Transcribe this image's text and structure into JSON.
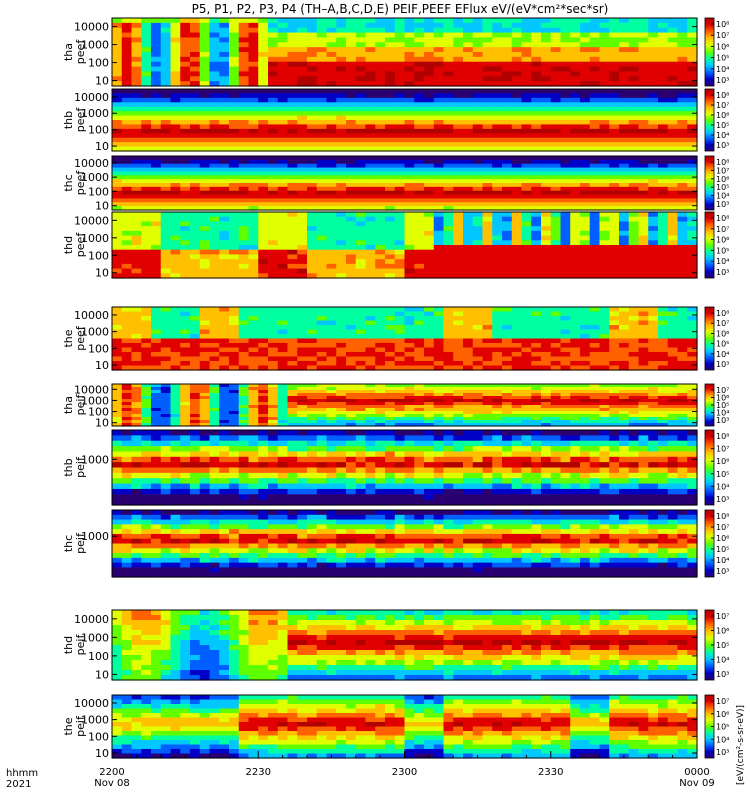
{
  "title": "P5, P1, P2, P3, P4 (TH–A,B,C,D,E) PEIF,PEEF EFlux eV/(eV*cm²*sec*sr)",
  "colorbar_unit_label": "[eV/(cm²-s-sr-eV)]",
  "time_axis": {
    "row1_label": "hhmm",
    "row2_label": "2021",
    "ticks": [
      {
        "t": 0,
        "hhmm": "2200",
        "date": "Nov 08"
      },
      {
        "t": 30,
        "hhmm": "2230",
        "date": ""
      },
      {
        "t": 60,
        "hhmm": "2300",
        "date": ""
      },
      {
        "t": 90,
        "hhmm": "2330",
        "date": ""
      },
      {
        "t": 120,
        "hhmm": "0000",
        "date": "Nov 09"
      }
    ],
    "minor_per_major": 6,
    "range_minutes": [
      0,
      120
    ]
  },
  "chart_data": {
    "type": "heatmap",
    "colormap": "rainbow (blue-cyan-green-yellow-red)",
    "time_range": [
      "2021-11-08 22:00",
      "2021-11-09 00:00"
    ],
    "panels": [
      {
        "id": "tha_peef",
        "probe": "tha",
        "product": "peef",
        "ylabel": [
          "tha",
          "peef"
        ],
        "yticks": [
          "10000",
          "1000",
          "100",
          "10"
        ],
        "yscale": "log",
        "ylim": [
          5,
          30000
        ],
        "colorbar_ticks": [
          "10⁸",
          "10⁷",
          "10⁶",
          "10⁵",
          "10⁴",
          "10³"
        ],
        "colorbar_range": [
          3,
          9
        ]
      },
      {
        "id": "thb_peef",
        "probe": "thb",
        "product": "peef",
        "ylabel": [
          "thb",
          "peef"
        ],
        "yticks": [
          "10000",
          "1000",
          "100",
          "10"
        ],
        "yscale": "log",
        "ylim": [
          5,
          30000
        ],
        "colorbar_ticks": [
          "10⁸",
          "10⁷",
          "10⁶",
          "10⁵",
          "10⁴",
          "10³"
        ],
        "colorbar_range": [
          3,
          9
        ]
      },
      {
        "id": "thc_peef",
        "probe": "thc",
        "product": "peef",
        "ylabel": [
          "thc",
          "peef"
        ],
        "yticks": [
          "10000",
          "1000",
          "100",
          "10"
        ],
        "yscale": "log",
        "ylim": [
          5,
          30000
        ],
        "colorbar_ticks": [
          "10⁸",
          "10⁷",
          "10⁶",
          "10⁵",
          "10⁴",
          "10³"
        ],
        "colorbar_range": [
          3,
          9
        ]
      },
      {
        "id": "thd_peef",
        "probe": "thd",
        "product": "peef",
        "ylabel": [
          "thd",
          "peef"
        ],
        "yticks": [
          "10000",
          "1000",
          "100",
          "10"
        ],
        "yscale": "log",
        "ylim": [
          5,
          30000
        ],
        "colorbar_ticks": [
          "10⁸",
          "10⁷",
          "10⁶",
          "10⁵",
          "10⁴",
          "10³"
        ],
        "colorbar_range": [
          3,
          9
        ]
      },
      {
        "id": "the_peef",
        "probe": "the",
        "product": "peef",
        "ylabel": [
          "the",
          "peef"
        ],
        "yticks": [
          "10000",
          "1000",
          "100",
          "10"
        ],
        "yscale": "log",
        "ylim": [
          5,
          30000
        ],
        "colorbar_ticks": [
          "10⁸",
          "10⁷",
          "10⁶",
          "10⁵",
          "10⁴",
          "10³"
        ],
        "colorbar_range": [
          3,
          9
        ]
      },
      {
        "id": "tha_peif",
        "probe": "tha",
        "product": "peif",
        "ylabel": [
          "tha",
          "peif"
        ],
        "yticks": [
          "10000",
          "1000",
          "100",
          "10"
        ],
        "yscale": "log",
        "ylim": [
          5,
          30000
        ],
        "colorbar_ticks": [
          "10⁷",
          "10⁶",
          "10⁵",
          "10⁴",
          "10³"
        ],
        "colorbar_range": [
          3,
          8
        ]
      },
      {
        "id": "thb_peif",
        "probe": "thb",
        "product": "peif",
        "ylabel": [
          "thb",
          "peif"
        ],
        "yticks": [
          "1000"
        ],
        "yscale": "log",
        "ylim": [
          5,
          30000
        ],
        "colorbar_ticks": [
          "10⁸",
          "10⁷",
          "10⁶",
          "10⁵",
          "10⁴",
          "10³"
        ],
        "colorbar_range": [
          3,
          9
        ]
      },
      {
        "id": "thc_peif",
        "probe": "thc",
        "product": "peif",
        "ylabel": [
          "thc",
          "peif"
        ],
        "yticks": [
          "1000"
        ],
        "yscale": "log",
        "ylim": [
          5,
          30000
        ],
        "colorbar_ticks": [
          "10⁸",
          "10⁷",
          "10⁶",
          "10⁵",
          "10⁴",
          "10³"
        ],
        "colorbar_range": [
          3,
          9
        ]
      },
      {
        "id": "thd_peif",
        "probe": "thd",
        "product": "peif",
        "ylabel": [
          "thd",
          "peif"
        ],
        "yticks": [
          "10000",
          "1000",
          "100",
          "10"
        ],
        "yscale": "log",
        "ylim": [
          5,
          30000
        ],
        "colorbar_ticks": [
          "10⁷",
          "10⁶",
          "10⁵",
          "10⁴",
          "10³"
        ],
        "colorbar_range": [
          3,
          8
        ]
      },
      {
        "id": "the_peif",
        "probe": "the",
        "product": "peif",
        "ylabel": [
          "the",
          "peif"
        ],
        "yticks": [
          "10000",
          "1000",
          "100",
          "10"
        ],
        "yscale": "log",
        "ylim": [
          5,
          30000
        ],
        "colorbar_ticks": [
          "10⁷",
          "10⁶",
          "10⁵",
          "10⁴",
          "10³"
        ],
        "colorbar_range": [
          3,
          8
        ]
      }
    ]
  }
}
